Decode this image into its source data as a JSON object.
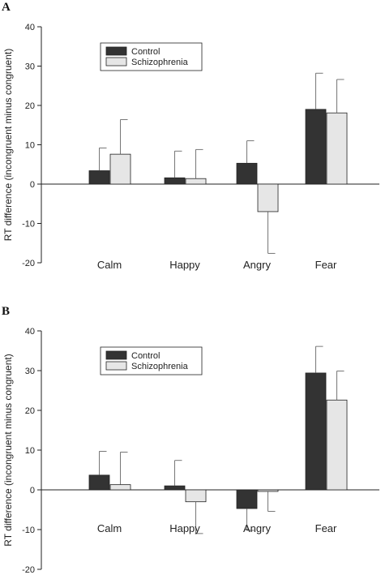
{
  "chart_data": [
    {
      "panel_label": "A",
      "type": "bar",
      "ylabel": "RT difference (incongruent minus congruent)",
      "ylim": [
        -20,
        40
      ],
      "yticks": [
        -20,
        -10,
        0,
        10,
        20,
        30,
        40
      ],
      "categories": [
        "Calm",
        "Happy",
        "Angry",
        "Fear"
      ],
      "series": [
        {
          "name": "Control",
          "color": "#333333",
          "values": [
            3.4,
            1.6,
            5.3,
            19.0
          ],
          "errors": [
            5.8,
            6.8,
            5.7,
            9.2
          ]
        },
        {
          "name": "Schizophrenia",
          "color": "#e6e6e6",
          "values": [
            7.6,
            1.4,
            -7.0,
            18.1
          ],
          "errors": [
            8.8,
            7.4,
            10.6,
            8.5
          ]
        }
      ],
      "legend": {
        "position": "top-left"
      }
    },
    {
      "panel_label": "B",
      "type": "bar",
      "ylabel": "RT difference (incongruent minus congruent)",
      "ylim": [
        -20,
        40
      ],
      "yticks": [
        -20,
        -10,
        0,
        10,
        20,
        30,
        40
      ],
      "categories": [
        "Calm",
        "Happy",
        "Angry",
        "Fear"
      ],
      "series": [
        {
          "name": "Control",
          "color": "#333333",
          "values": [
            3.7,
            1.0,
            -4.7,
            29.4
          ],
          "errors": [
            6.0,
            6.4,
            5.5,
            6.7
          ]
        },
        {
          "name": "Schizophrenia",
          "color": "#e6e6e6",
          "values": [
            1.3,
            -3.0,
            -0.4,
            22.6
          ],
          "errors": [
            8.2,
            8.0,
            5.0,
            7.3
          ]
        }
      ],
      "legend": {
        "position": "top-left"
      }
    }
  ]
}
